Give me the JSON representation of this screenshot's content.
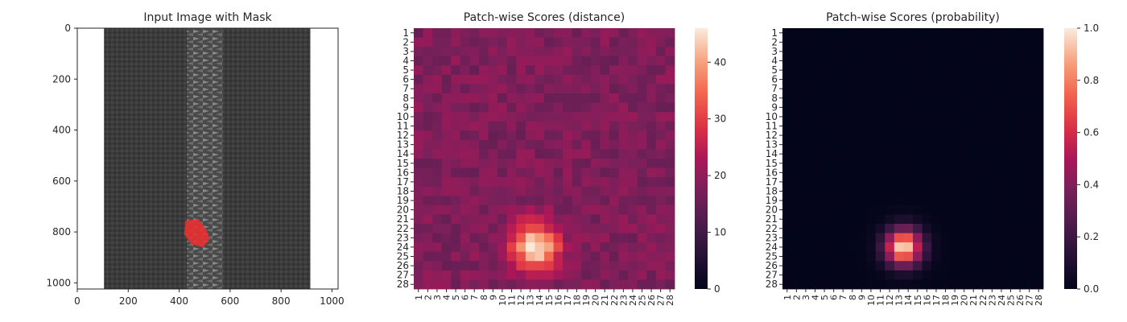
{
  "chart_data": [
    {
      "type": "image",
      "title": "Input Image with Mask",
      "xlim": [
        0,
        1024
      ],
      "ylim": [
        1024,
        0
      ],
      "xticks": [
        "0",
        "200",
        "400",
        "600",
        "800",
        "1000"
      ],
      "yticks": [
        "0",
        "200",
        "400",
        "600",
        "800",
        "1000"
      ],
      "tick_values": [
        0,
        200,
        400,
        600,
        800,
        1000
      ],
      "image_extent": {
        "x_start": 105,
        "x_end": 915
      },
      "zipper_x_range": [
        430,
        570
      ],
      "mask": {
        "color": "#e83030",
        "x_range": [
          420,
          520
        ],
        "y_range": [
          750,
          860
        ]
      }
    },
    {
      "type": "heatmap",
      "title": "Patch-wise Scores (distance)",
      "xtick_labels": [
        "1",
        "2",
        "3",
        "4",
        "5",
        "6",
        "7",
        "8",
        "9",
        "10",
        "11",
        "12",
        "13",
        "14",
        "15",
        "16",
        "17",
        "18",
        "19",
        "20",
        "21",
        "22",
        "23",
        "24",
        "25",
        "26",
        "27",
        "28"
      ],
      "ytick_labels": [
        "1",
        "2",
        "3",
        "4",
        "5",
        "6",
        "7",
        "8",
        "9",
        "10",
        "11",
        "12",
        "13",
        "14",
        "15",
        "16",
        "17",
        "18",
        "19",
        "20",
        "21",
        "22",
        "23",
        "24",
        "25",
        "26",
        "27",
        "28"
      ],
      "colorbar_ticks": [
        "0",
        "10",
        "20",
        "30",
        "40"
      ],
      "colorbar_tick_values": [
        0,
        10,
        20,
        30,
        40
      ],
      "vmin": 0,
      "vmax": 46,
      "baseline": 18,
      "anomaly": {
        "row": 24,
        "col": 13.5,
        "peak": 46,
        "spread": 1.8
      },
      "colormap": "rocket"
    },
    {
      "type": "heatmap",
      "title": "Patch-wise Scores (probability)",
      "xtick_labels": [
        "1",
        "2",
        "3",
        "4",
        "5",
        "6",
        "7",
        "8",
        "9",
        "10",
        "11",
        "12",
        "13",
        "14",
        "15",
        "16",
        "17",
        "18",
        "19",
        "20",
        "21",
        "22",
        "23",
        "24",
        "25",
        "26",
        "27",
        "28"
      ],
      "ytick_labels": [
        "1",
        "2",
        "3",
        "4",
        "5",
        "6",
        "7",
        "8",
        "9",
        "10",
        "11",
        "12",
        "13",
        "14",
        "15",
        "16",
        "17",
        "18",
        "19",
        "20",
        "21",
        "22",
        "23",
        "24",
        "25",
        "26",
        "27",
        "28"
      ],
      "colorbar_ticks": [
        "0.0",
        "0.2",
        "0.4",
        "0.6",
        "0.8",
        "1.0"
      ],
      "colorbar_tick_values": [
        0,
        0.2,
        0.4,
        0.6,
        0.8,
        1.0
      ],
      "vmin": 0,
      "vmax": 1,
      "anomaly": {
        "row": 24,
        "col": 13.5,
        "peak": 1.0,
        "spread": 1.4
      },
      "colormap": "rocket"
    }
  ]
}
